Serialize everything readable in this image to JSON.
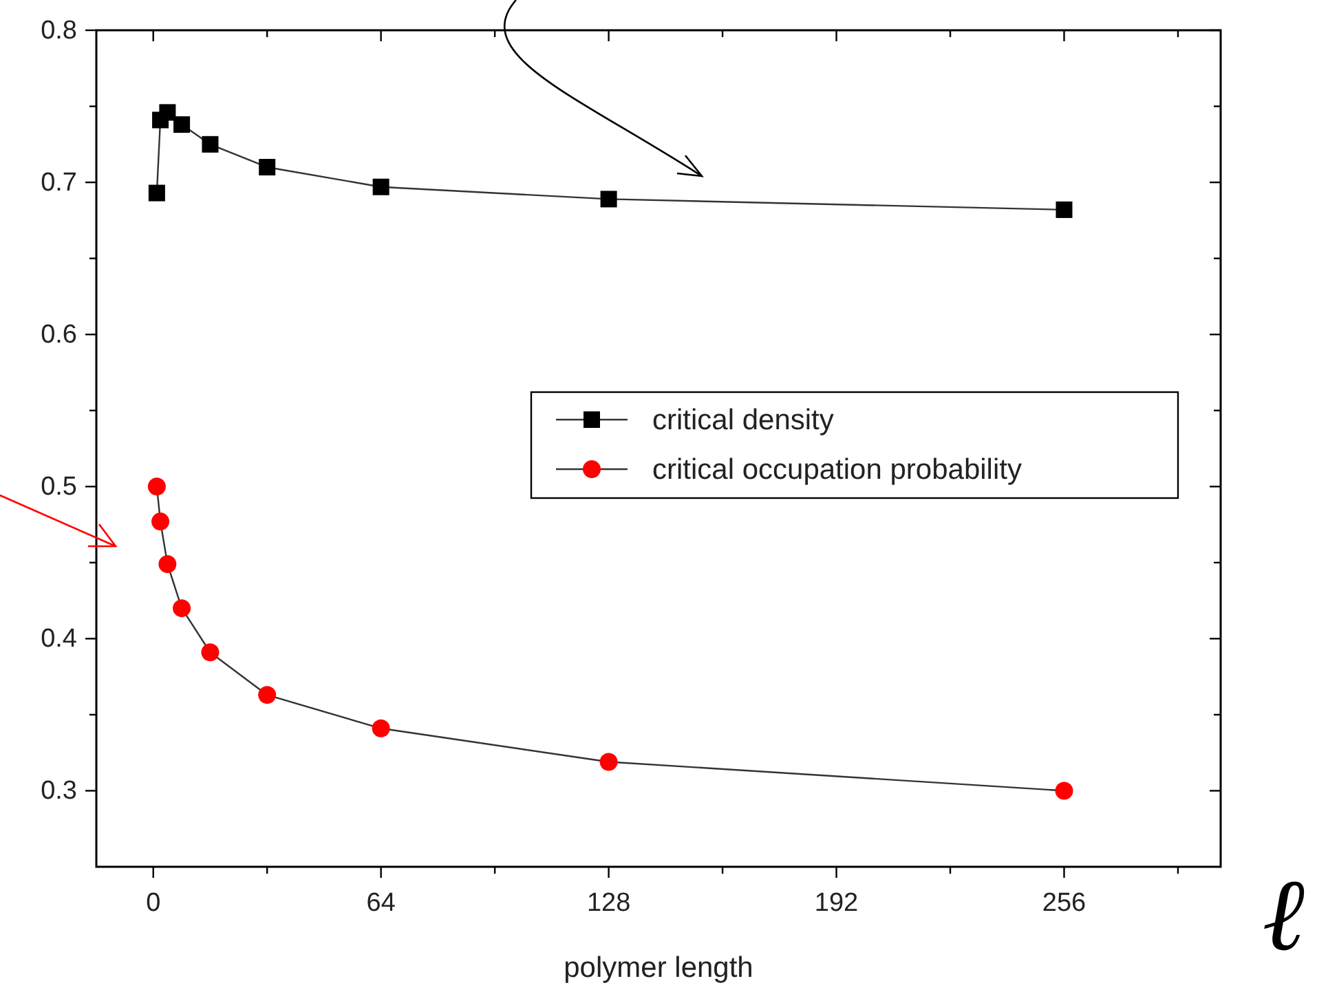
{
  "chart_data": {
    "type": "line",
    "xlabel": "polymer length",
    "x": [
      1,
      2,
      4,
      8,
      16,
      32,
      64,
      128,
      256
    ],
    "series": [
      {
        "name": "critical density",
        "color": "#000000",
        "marker": "square",
        "values": [
          0.693,
          0.741,
          0.746,
          0.738,
          0.725,
          0.71,
          0.697,
          0.689,
          0.682
        ]
      },
      {
        "name": "critical occupation probability",
        "color": "#ff0000",
        "marker": "circle",
        "values": [
          0.5,
          0.477,
          0.449,
          0.42,
          0.391,
          0.363,
          0.341,
          0.319,
          0.3
        ]
      }
    ],
    "xlim": [
      -16,
      300
    ],
    "xticks": [
      0,
      {
        "value": 32,
        "label": null
      },
      64,
      {
        "value": 96,
        "label": null
      },
      128,
      {
        "value": 160,
        "label": null
      },
      192,
      {
        "value": 224,
        "label": null
      },
      256,
      {
        "value": 288,
        "label": null
      }
    ],
    "ylim": [
      0.25,
      0.8
    ],
    "yticks": [
      0.3,
      {
        "value": 0.35,
        "label": null
      },
      0.4,
      {
        "value": 0.45,
        "label": null
      },
      0.5,
      {
        "value": 0.55,
        "label": null
      },
      0.6,
      {
        "value": 0.65,
        "label": null
      },
      0.7,
      {
        "value": 0.75,
        "label": null
      },
      0.8
    ],
    "grid": false,
    "legend": "right",
    "line_style": "solid",
    "annotations": [
      "ℓ"
    ]
  }
}
